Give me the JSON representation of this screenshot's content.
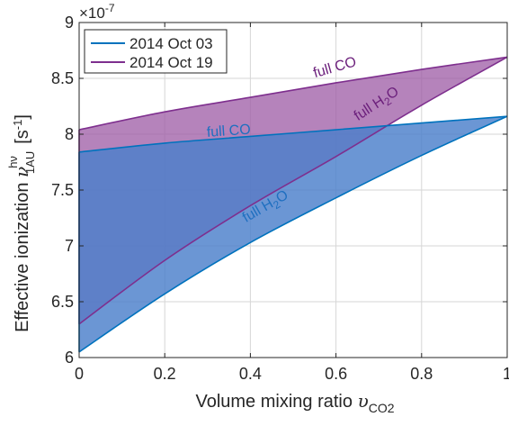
{
  "chart_data": {
    "type": "area",
    "xlabel": "Volume mixing ratio",
    "xlabel_symbol": "υ",
    "xlabel_sub": "CO2",
    "ylabel": "Effective ionization",
    "ylabel_symbol": "ν",
    "ylabel_sup": "hν",
    "ylabel_sub": "1AU",
    "ylabel_unit_open": "[s",
    "ylabel_unit_exp": "-1",
    "ylabel_unit_close": "]",
    "y_multiplier": "×10",
    "y_multiplier_exp": "-7",
    "xlim": [
      0,
      1
    ],
    "ylim": [
      6,
      9
    ],
    "xticks": [
      0,
      0.2,
      0.4,
      0.6,
      0.8,
      1
    ],
    "xtick_labels": [
      "0",
      "0.2",
      "0.4",
      "0.6",
      "0.8",
      "1"
    ],
    "yticks": [
      6,
      6.5,
      7,
      7.5,
      8,
      8.5,
      9
    ],
    "ytick_labels": [
      "6",
      "6.5",
      "7",
      "7.5",
      "8",
      "8.5",
      "9"
    ],
    "grid": true,
    "legend_position": "top-left",
    "series": [
      {
        "name": "2014 Oct 03",
        "color": "#0072BD",
        "fill": "#4A7FCB",
        "full_CO": {
          "x": [
            0,
            0.2,
            0.4,
            0.6,
            0.8,
            1
          ],
          "y": [
            7.84,
            7.92,
            7.98,
            8.04,
            8.1,
            8.16
          ]
        },
        "full_H2O": {
          "x": [
            0,
            0.2,
            0.4,
            0.6,
            0.8,
            1
          ],
          "y": [
            6.05,
            6.57,
            7.03,
            7.43,
            7.81,
            8.16
          ]
        }
      },
      {
        "name": "2014 Oct 19",
        "color": "#7E2F8E",
        "fill": "#A060A8",
        "full_CO": {
          "x": [
            0,
            0.2,
            0.4,
            0.6,
            0.8,
            1
          ],
          "y": [
            8.04,
            8.2,
            8.33,
            8.46,
            8.58,
            8.69
          ]
        },
        "full_H2O": {
          "x": [
            0,
            0.2,
            0.4,
            0.6,
            0.8,
            1
          ],
          "y": [
            6.3,
            6.87,
            7.36,
            7.8,
            8.26,
            8.69
          ]
        }
      }
    ],
    "annotations": [
      {
        "series": 1,
        "text": "full CO",
        "x": 0.6,
        "y": 8.56,
        "angle": -16
      },
      {
        "series": 1,
        "text": "full H",
        "sub": "2",
        "tail": "O",
        "x": 0.7,
        "y": 8.24,
        "angle": -33
      },
      {
        "series": 0,
        "text": "full CO",
        "x": 0.35,
        "y": 7.99,
        "angle": -4
      },
      {
        "series": 0,
        "text": "full H",
        "sub": "2",
        "tail": "O",
        "x": 0.44,
        "y": 7.32,
        "angle": -30
      }
    ]
  }
}
